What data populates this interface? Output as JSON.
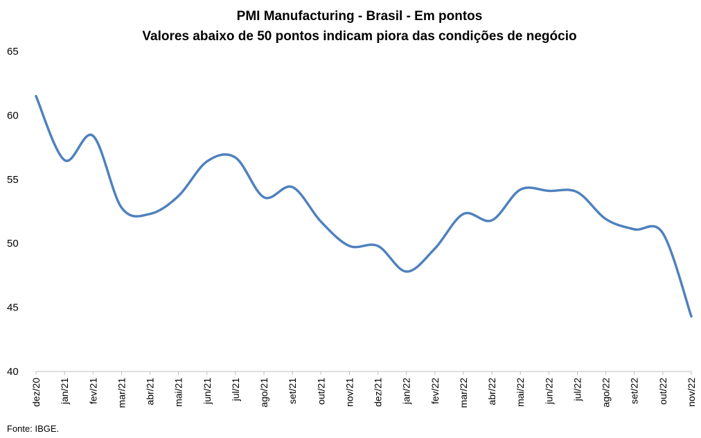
{
  "chart_data": {
    "type": "line",
    "title": "PMI Manufacturing - Brasil - Em pontos",
    "subtitle": "Valores abaixo de 50 pontos indicam piora das condições de negócio",
    "categories": [
      "dez/20",
      "jan/21",
      "fev/21",
      "mar/21",
      "abr/21",
      "mai/21",
      "jun/21",
      "jul/21",
      "ago/21",
      "set/21",
      "out/21",
      "nov/21",
      "dez/21",
      "jan/22",
      "fev/22",
      "mar/22",
      "abr/22",
      "mai/22",
      "jun/22",
      "jul/22",
      "ago/22",
      "set/22",
      "out/22",
      "nov/22"
    ],
    "series": [
      {
        "values": [
          61.5,
          56.5,
          58.4,
          52.8,
          52.3,
          53.7,
          56.4,
          56.7,
          53.6,
          54.4,
          51.7,
          49.8,
          49.8,
          47.8,
          49.6,
          52.3,
          51.8,
          54.2,
          54.1,
          54.0,
          51.9,
          51.1,
          50.8,
          44.3
        ]
      }
    ],
    "yticks": [
      40,
      45,
      50,
      55,
      60,
      65
    ],
    "ylim": [
      40,
      65
    ],
    "grid": false,
    "line_color": "#4f81bd"
  },
  "footer": {
    "source": "Fonte: IBGE."
  }
}
